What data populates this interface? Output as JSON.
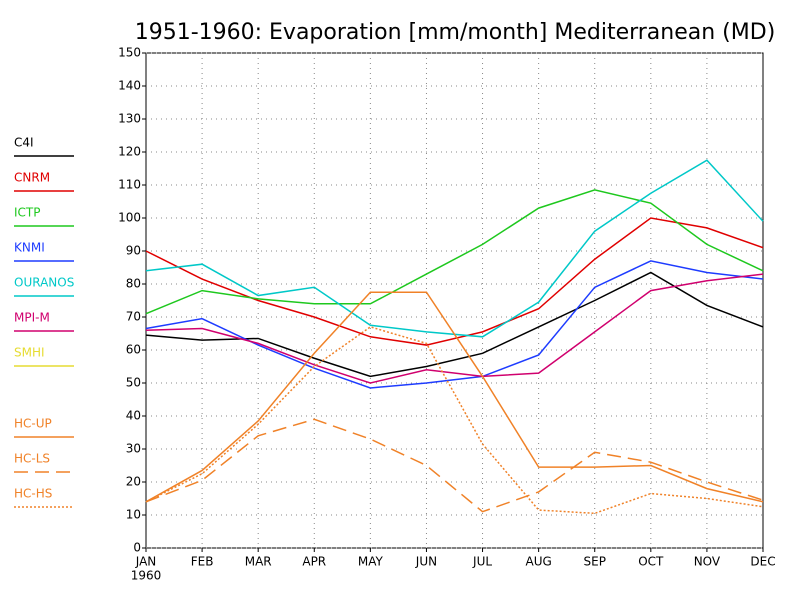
{
  "chart_data": {
    "type": "line",
    "title": "1951-1960: Evaporation [mm/month] Mediterranean (MD)",
    "categories": [
      "JAN",
      "FEB",
      "MAR",
      "APR",
      "MAY",
      "JUN",
      "JUL",
      "AUG",
      "SEP",
      "OCT",
      "NOV",
      "DEC"
    ],
    "year_label": "1960",
    "ylim": [
      0,
      150
    ],
    "yticks": [
      0,
      10,
      20,
      30,
      40,
      50,
      60,
      70,
      80,
      90,
      100,
      110,
      120,
      130,
      140,
      150
    ],
    "grid": true,
    "legend": "left",
    "series": [
      {
        "name": "C4I",
        "color": "#000000",
        "dash": "solid",
        "values": [
          64.5,
          63,
          63.5,
          57.5,
          52,
          55,
          59,
          67,
          75,
          83.5,
          73.5,
          67
        ]
      },
      {
        "name": "CNRM",
        "color": "#e00000",
        "dash": "solid",
        "values": [
          90,
          81.5,
          75,
          70,
          64,
          61.5,
          65.5,
          72.5,
          87.5,
          100,
          97,
          91
        ]
      },
      {
        "name": "ICTP",
        "color": "#1ec81e",
        "dash": "solid",
        "values": [
          71,
          78,
          75.5,
          74,
          74,
          83,
          92,
          103,
          108.5,
          104.5,
          92,
          84
        ]
      },
      {
        "name": "KNMI",
        "color": "#1e3cff",
        "dash": "solid",
        "values": [
          66.5,
          69.5,
          61.5,
          54.5,
          48.5,
          50,
          52,
          58.5,
          79,
          87,
          83.5,
          81.5
        ]
      },
      {
        "name": "OURANOS",
        "color": "#00c8c8",
        "dash": "solid",
        "values": [
          84,
          86,
          76.5,
          79,
          67.5,
          65.5,
          64,
          74.5,
          96,
          107.5,
          117.5,
          99
        ]
      },
      {
        "name": "MPI-M",
        "color": "#d0006e",
        "dash": "solid",
        "values": [
          66,
          66.5,
          62,
          55.5,
          50,
          54,
          52,
          53,
          65.5,
          78,
          81,
          83
        ]
      },
      {
        "name": "SMHI",
        "color": "#e6dc32",
        "dash": "solid",
        "values": [
          null,
          null,
          null,
          null,
          null,
          null,
          null,
          null,
          null,
          null,
          null,
          null
        ]
      },
      {
        "name": "HC-UP",
        "color": "#f08228",
        "dash": "solid",
        "values": [
          14,
          23.5,
          38.5,
          59,
          77.5,
          77.5,
          52,
          24.5,
          24.5,
          25,
          18,
          14
        ]
      },
      {
        "name": "HC-LS",
        "color": "#f08228",
        "dash": "long",
        "values": [
          14,
          20.5,
          34,
          39,
          33,
          25,
          11,
          17,
          29,
          26,
          20,
          14.5
        ]
      },
      {
        "name": "HC-HS",
        "color": "#f08228",
        "dash": "dotted",
        "values": [
          14,
          22.5,
          37.5,
          55,
          67,
          62,
          31.5,
          11.5,
          10.5,
          16.5,
          15,
          12.5
        ]
      }
    ]
  }
}
